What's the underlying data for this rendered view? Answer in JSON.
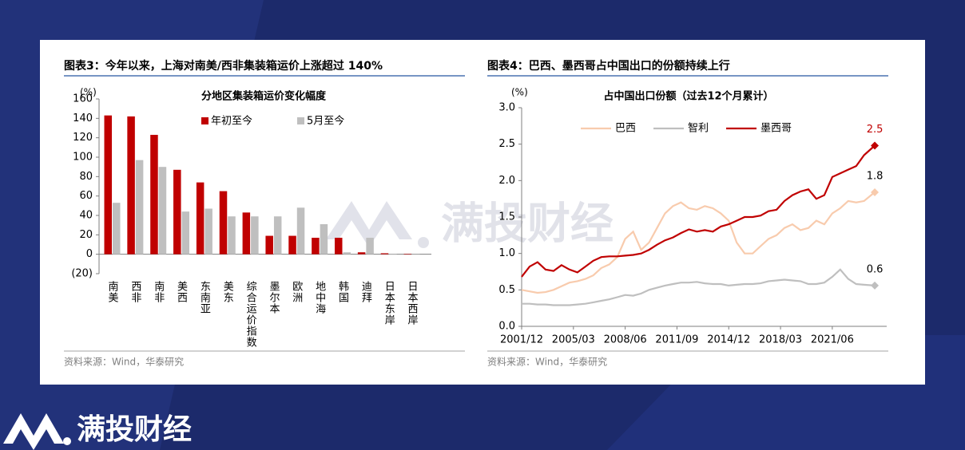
{
  "brand": "满投财经",
  "chart_data": [
    {
      "type": "bar",
      "title": "图表3：今年以来，上海对南美/西非集装箱运价上涨超过 140%",
      "subtitle": "分地区集装箱运价变化幅度",
      "y_label": "(%)",
      "source": "资料来源：Wind，华泰研究",
      "categories": [
        "南美",
        "西非",
        "南非",
        "美西",
        "东南亚",
        "美东",
        "综合运价指数",
        "墨尔本",
        "欧洲",
        "地中海",
        "韩国",
        "迪拜",
        "日本东岸",
        "日本西岸"
      ],
      "series": [
        {
          "name": "年初至今",
          "color": "#c00000",
          "values": [
            143,
            142,
            123,
            87,
            74,
            65,
            43,
            19,
            19,
            17,
            17,
            2,
            1,
            0.5
          ]
        },
        {
          "name": "5月至今",
          "color": "#bfbfbf",
          "values": [
            53,
            97,
            90,
            44,
            47,
            39,
            39,
            39,
            48,
            31,
            2,
            17,
            0.5,
            0.3
          ]
        }
      ],
      "ylim": [
        -20,
        160
      ],
      "yticks": [
        {
          "value": -20,
          "label": "(20)"
        },
        0,
        20,
        40,
        60,
        80,
        100,
        120,
        140,
        160
      ]
    },
    {
      "type": "line",
      "title": "图表4：巴西、墨西哥占中国出口的份额持续上行",
      "subtitle": "占中国出口份额（过去12个月累计）",
      "y_label": "(%)",
      "source": "资料来源：Wind，华泰研究",
      "x": [
        "2001/12",
        "2002/06",
        "2002/12",
        "2003/06",
        "2003/12",
        "2004/06",
        "2004/12",
        "2005/06",
        "2005/12",
        "2006/06",
        "2006/12",
        "2007/06",
        "2007/12",
        "2008/06",
        "2008/12",
        "2009/06",
        "2009/12",
        "2010/06",
        "2010/12",
        "2011/06",
        "2011/12",
        "2012/06",
        "2012/12",
        "2013/06",
        "2013/12",
        "2014/06",
        "2014/12",
        "2015/06",
        "2015/12",
        "2016/06",
        "2016/12",
        "2017/06",
        "2017/12",
        "2018/06",
        "2018/12",
        "2019/06",
        "2019/12",
        "2020/06",
        "2020/12",
        "2021/06",
        "2021/12",
        "2022/06",
        "2022/12",
        "2023/06",
        "2024/02"
      ],
      "series": [
        {
          "name": "巴西",
          "color": "#f8cbad",
          "end_label": "1.8",
          "values": [
            0.5,
            0.48,
            0.46,
            0.47,
            0.5,
            0.55,
            0.6,
            0.62,
            0.65,
            0.7,
            0.8,
            0.85,
            0.95,
            1.2,
            1.3,
            1.05,
            1.15,
            1.35,
            1.55,
            1.65,
            1.7,
            1.62,
            1.6,
            1.65,
            1.62,
            1.55,
            1.45,
            1.15,
            1.0,
            1.0,
            1.1,
            1.2,
            1.25,
            1.35,
            1.4,
            1.32,
            1.35,
            1.45,
            1.4,
            1.55,
            1.62,
            1.72,
            1.7,
            1.72,
            1.84
          ]
        },
        {
          "name": "智利",
          "color": "#bfbfbf",
          "end_label": "0.6",
          "values": [
            0.31,
            0.31,
            0.3,
            0.3,
            0.29,
            0.29,
            0.29,
            0.3,
            0.31,
            0.33,
            0.35,
            0.37,
            0.4,
            0.43,
            0.42,
            0.45,
            0.5,
            0.53,
            0.56,
            0.58,
            0.6,
            0.6,
            0.61,
            0.59,
            0.58,
            0.58,
            0.56,
            0.57,
            0.58,
            0.58,
            0.59,
            0.62,
            0.63,
            0.64,
            0.63,
            0.62,
            0.58,
            0.58,
            0.6,
            0.68,
            0.78,
            0.65,
            0.58,
            0.57,
            0.56
          ]
        },
        {
          "name": "墨西哥",
          "color": "#c00000",
          "end_label": "2.5",
          "values": [
            0.68,
            0.82,
            0.88,
            0.78,
            0.76,
            0.84,
            0.78,
            0.74,
            0.82,
            0.9,
            0.95,
            0.96,
            0.96,
            0.97,
            0.98,
            1.0,
            1.05,
            1.12,
            1.18,
            1.22,
            1.28,
            1.33,
            1.3,
            1.32,
            1.3,
            1.37,
            1.4,
            1.45,
            1.5,
            1.5,
            1.52,
            1.58,
            1.6,
            1.72,
            1.8,
            1.85,
            1.88,
            1.75,
            1.8,
            2.05,
            2.1,
            2.15,
            2.2,
            2.35,
            2.48
          ]
        }
      ],
      "xlim": [
        "2001/12",
        "2024/11"
      ],
      "xticks": [
        "2001/12",
        "2005/03",
        "2008/06",
        "2011/09",
        "2014/12",
        "2018/03",
        "2021/06"
      ],
      "ylim": [
        0,
        3
      ],
      "yticks": [
        {
          "value": 0,
          "label": "0.0"
        },
        0.5,
        {
          "value": 1,
          "label": "1.0"
        },
        1.5,
        {
          "value": 2,
          "label": "2.0"
        },
        2.5,
        {
          "value": 3,
          "label": "3.0"
        }
      ]
    }
  ]
}
